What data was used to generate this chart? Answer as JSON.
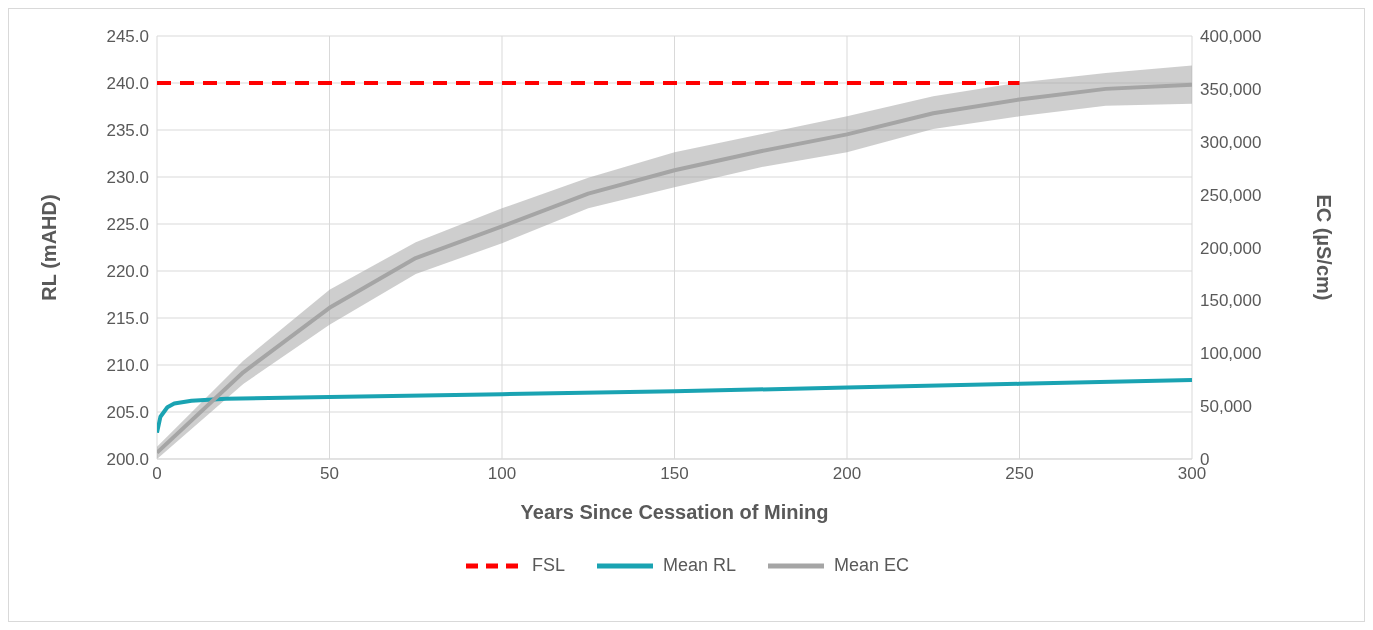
{
  "chart_data": {
    "type": "line",
    "xlabel": "Years Since Cessation of Mining",
    "ylabel": "RL (mAHD)",
    "y2label": "EC (µS/cm)",
    "xlim": [
      0,
      300
    ],
    "xticks": [
      0,
      50,
      100,
      150,
      200,
      250,
      300
    ],
    "ylim": [
      200,
      245
    ],
    "yticks": [
      {
        "value": 200,
        "label": "200.0"
      },
      {
        "value": 205,
        "label": "205.0"
      },
      {
        "value": 210,
        "label": "210.0"
      },
      {
        "value": 215,
        "label": "215.0"
      },
      {
        "value": 220,
        "label": "220.0"
      },
      {
        "value": 225,
        "label": "225.0"
      },
      {
        "value": 230,
        "label": "230.0"
      },
      {
        "value": 235,
        "label": "235.0"
      },
      {
        "value": 240,
        "label": "240.0"
      },
      {
        "value": 245,
        "label": "245.0"
      }
    ],
    "y2lim": [
      0,
      400000
    ],
    "y2ticks": [
      {
        "value": 0,
        "label": "0"
      },
      {
        "value": 50000,
        "label": "50,000"
      },
      {
        "value": 100000,
        "label": "100,000"
      },
      {
        "value": 150000,
        "label": "150,000"
      },
      {
        "value": 200000,
        "label": "200,000"
      },
      {
        "value": 250000,
        "label": "250,000"
      },
      {
        "value": 300000,
        "label": "300,000"
      },
      {
        "value": 350000,
        "label": "350,000"
      },
      {
        "value": 400000,
        "label": "400,000"
      }
    ],
    "grid": true,
    "legend": "bottom",
    "series": [
      {
        "name": "FSL",
        "line_style": "dashed",
        "color": "#ff0000",
        "x": [
          0,
          250
        ],
        "values": [
          240,
          240
        ]
      },
      {
        "name": "Mean RL",
        "color": "#1aa3b2",
        "x": [
          0,
          1,
          3,
          5,
          10,
          20,
          50,
          100,
          150,
          200,
          250,
          300
        ],
        "values": [
          202.8,
          204.5,
          205.5,
          205.9,
          206.2,
          206.4,
          206.6,
          206.9,
          207.2,
          207.6,
          208.0,
          208.4
        ]
      },
      {
        "name": "Mean EC",
        "axis": "y2",
        "color": "#a5a5a5",
        "x": [
          0,
          25,
          50,
          75,
          100,
          125,
          150,
          175,
          200,
          225,
          250,
          275,
          300
        ],
        "values": [
          6000,
          82000,
          143000,
          190000,
          220000,
          251000,
          273000,
          291000,
          307000,
          327000,
          340000,
          350000,
          354000
        ],
        "lower": [
          0,
          71000,
          127000,
          175000,
          204000,
          237000,
          257000,
          276000,
          290000,
          312000,
          324000,
          334000,
          336000
        ],
        "upper": [
          11500,
          93000,
          160000,
          205000,
          237000,
          266000,
          290000,
          307000,
          324000,
          343000,
          356000,
          365000,
          372000
        ]
      }
    ]
  }
}
